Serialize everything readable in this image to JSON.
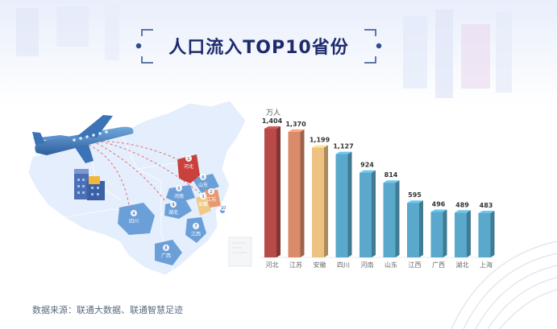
{
  "title": "人口流入TOP10省份",
  "source_note": "数据来源：联通大数据、联通智慧足迹",
  "map": {
    "labels": [
      "河北",
      "山东",
      "河南",
      "安徽",
      "湖北",
      "江苏",
      "上海",
      "四川",
      "江西",
      "广西"
    ],
    "badges": [
      "1",
      "6",
      "5",
      "3",
      "9",
      "2",
      "10",
      "4",
      "7",
      "8"
    ]
  },
  "chart_data": {
    "type": "bar",
    "unit_label": "万人",
    "categories": [
      "河北",
      "江苏",
      "安徽",
      "四川",
      "河南",
      "山东",
      "江西",
      "广西",
      "湖北",
      "上海"
    ],
    "values": [
      1404,
      1370,
      1199,
      1127,
      924,
      814,
      595,
      496,
      489,
      483
    ],
    "value_labels": [
      "1,404",
      "1,370",
      "1,199",
      "1,127",
      "924",
      "814",
      "595",
      "496",
      "489",
      "483"
    ],
    "colors": [
      "#b84a47",
      "#d98b6a",
      "#eec382",
      "#5aa9cc",
      "#5aa9cc",
      "#5aa9cc",
      "#5aa9cc",
      "#5aa9cc",
      "#5aa9cc",
      "#5aa9cc"
    ],
    "ylim": [
      0,
      1500
    ],
    "grid": false,
    "legend": "none"
  }
}
